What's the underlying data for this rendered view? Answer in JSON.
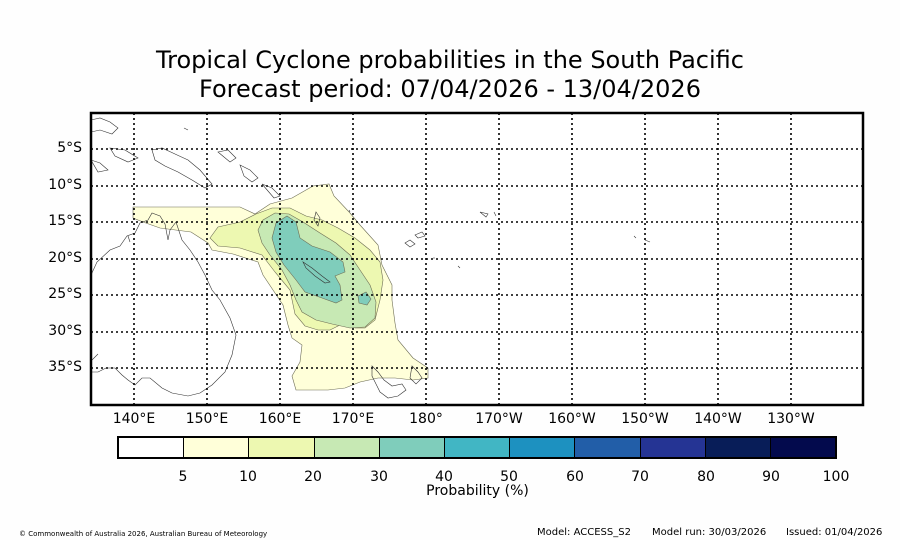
{
  "title": {
    "line1": "Tropical Cyclone probabilities in the South Pacific",
    "line2": "Forecast period: 07/04/2026 - 13/04/2026"
  },
  "map": {
    "lat_labels": [
      "5°S",
      "10°S",
      "15°S",
      "20°S",
      "25°S",
      "30°S",
      "35°S"
    ],
    "lon_labels": [
      "140°E",
      "150°E",
      "160°E",
      "170°E",
      "180°",
      "170°W",
      "160°W",
      "150°W",
      "140°W",
      "130°W"
    ]
  },
  "legend": {
    "title": "Probability (%)",
    "tick_labels": [
      "5",
      "10",
      "20",
      "30",
      "40",
      "50",
      "60",
      "70",
      "80",
      "90",
      "100"
    ],
    "colors": [
      "#ffffff",
      "#ffffd9",
      "#edf8b1",
      "#c7e9b4",
      "#7fcdbb",
      "#41b6c4",
      "#1d91c0",
      "#225ea8",
      "#253494",
      "#081d58",
      "#030a4d"
    ]
  },
  "footer": {
    "copyright": "© Commonwealth of Australia 2026, Australian Bureau of Meteorology",
    "model": "Model: ACCESS_S2",
    "model_run": "Model run: 30/03/2026",
    "issued": "Issued: 01/04/2026"
  }
}
